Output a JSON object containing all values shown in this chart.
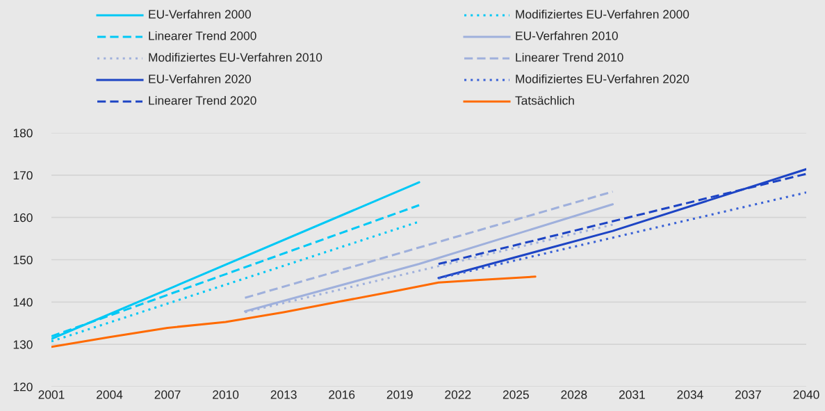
{
  "chart_data": {
    "type": "line",
    "xlim": [
      2001,
      2040
    ],
    "ylim": [
      120,
      180
    ],
    "xticks": [
      2001,
      2004,
      2007,
      2010,
      2013,
      2016,
      2019,
      2022,
      2025,
      2028,
      2031,
      2034,
      2037,
      2040
    ],
    "yticks": [
      120,
      130,
      140,
      150,
      160,
      170,
      180
    ],
    "grid": "y",
    "legend": "top",
    "series": [
      {
        "name": "EU-Verfahren 2000",
        "color": "#00c8f5",
        "line_style": "solid",
        "x": [
          2001,
          2020
        ],
        "values": [
          131.3,
          168.3
        ]
      },
      {
        "name": "Linearer Trend 2000",
        "color": "#00c8f5",
        "line_style": "dashed",
        "x": [
          2001,
          2020
        ],
        "values": [
          131.9,
          162.9
        ]
      },
      {
        "name": "Modifiziertes EU-Verfahren 2010",
        "color": "#9fb0dc",
        "line_style": "dotted",
        "x": [
          2011,
          2030
        ],
        "values": [
          137.6,
          158.3
        ]
      },
      {
        "name": "EU-Verfahren 2020",
        "color": "#1d44c4",
        "line_style": "solid",
        "x": [
          2021,
          2030,
          2040
        ],
        "values": [
          145.7,
          156.8,
          171.4
        ]
      },
      {
        "name": "Linearer Trend 2020",
        "color": "#1d44c4",
        "line_style": "dashed",
        "x": [
          2021,
          2040
        ],
        "values": [
          149.0,
          170.3
        ]
      },
      {
        "name": "Modifiziertes EU-Verfahren 2000",
        "color": "#00c8f5",
        "line_style": "dotted",
        "x": [
          2001,
          2020
        ],
        "values": [
          130.7,
          159.0
        ]
      },
      {
        "name": "EU-Verfahren 2010",
        "color": "#9fb0dc",
        "line_style": "solid",
        "x": [
          2011,
          2020,
          2030
        ],
        "values": [
          137.8,
          149.0,
          163.1
        ]
      },
      {
        "name": "Linearer Trend 2010",
        "color": "#9fb0dc",
        "line_style": "dashed",
        "x": [
          2011,
          2030
        ],
        "values": [
          141.0,
          166.1
        ]
      },
      {
        "name": "Modifiziertes EU-Verfahren 2020",
        "color": "#3a62d6",
        "line_style": "dotted",
        "x": [
          2021,
          2040
        ],
        "values": [
          145.6,
          165.9
        ]
      },
      {
        "name": "Tatsächlich",
        "color": "#ff6a00",
        "line_style": "solid",
        "x": [
          2001,
          2004,
          2007,
          2010,
          2013,
          2016,
          2019,
          2021,
          2023,
          2026
        ],
        "values": [
          129.4,
          131.7,
          133.9,
          135.3,
          137.6,
          140.2,
          142.8,
          144.6,
          145.2,
          146.0
        ]
      }
    ]
  }
}
